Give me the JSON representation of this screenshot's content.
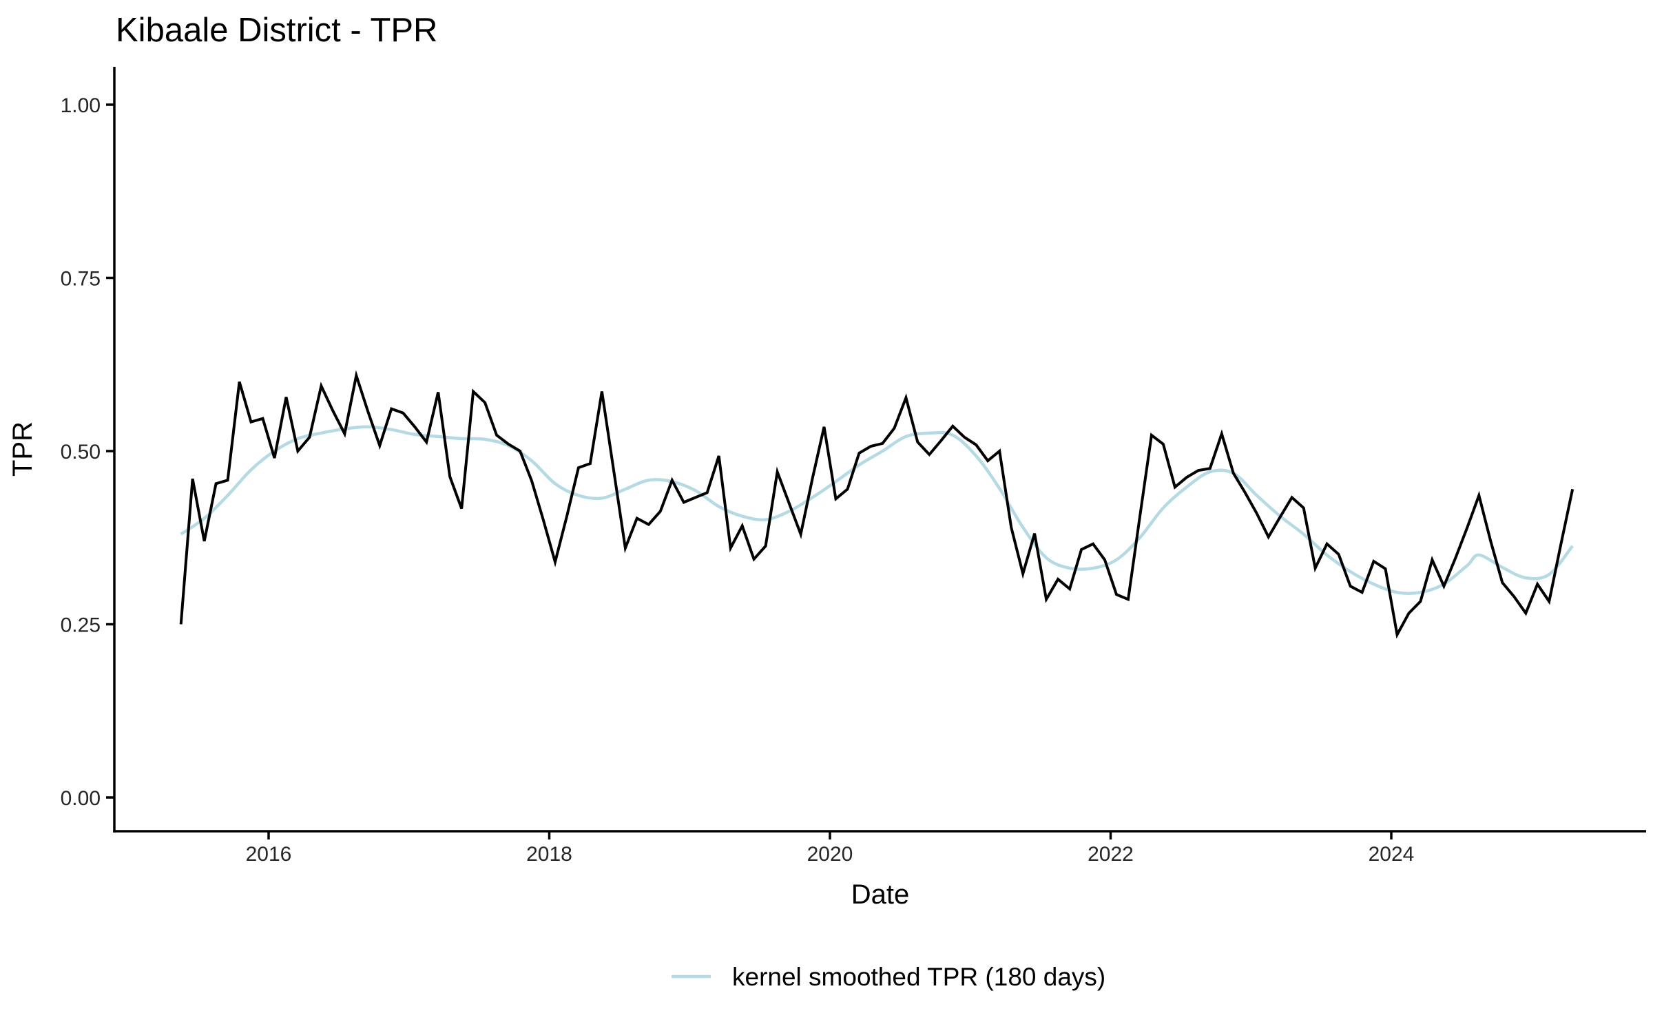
{
  "title": "Kibaale District - TPR",
  "axes": {
    "x_label": "Date",
    "y_label": "TPR",
    "x_tick_labels": [
      "2016",
      "2018",
      "2020",
      "2022",
      "2024"
    ],
    "x_tick_years": [
      2016,
      2018,
      2020,
      2022,
      2024
    ],
    "y_tick_labels": [
      "0.00",
      "0.25",
      "0.50",
      "0.75",
      "1.00"
    ],
    "y_tick_values": [
      0.0,
      0.25,
      0.5,
      0.75,
      1.0
    ]
  },
  "legend": {
    "label": "kernel smoothed TPR (180 days)",
    "swatch_color": "#B6DAE4"
  },
  "colors": {
    "raw_line": "#000000",
    "smoothed_line": "#B6DAE4",
    "axis": "#000000",
    "tick_text": "#262626"
  },
  "chart_data": {
    "type": "line",
    "title": "Kibaale District - TPR",
    "xlabel": "Date",
    "ylabel": "TPR",
    "legend_label": "kernel smoothed TPR (180 days)",
    "ylim": [
      0.0,
      1.0
    ],
    "x_ticks": [
      2016,
      2018,
      2020,
      2022,
      2024
    ],
    "y_ticks": [
      0.0,
      0.25,
      0.5,
      0.75,
      1.0
    ],
    "grid": "off",
    "legend_position": "bottom-center",
    "series": [
      {
        "name": "monthly TPR",
        "color": "#000000",
        "style": "solid",
        "start": "2015-05",
        "frequency": "monthly",
        "monthly_values": [
          0.25,
          0.46,
          0.37,
          0.453,
          0.458,
          0.6,
          0.542,
          0.547,
          0.49,
          0.578,
          0.5,
          0.52,
          0.594,
          0.558,
          0.525,
          0.609,
          0.557,
          0.508,
          0.561,
          0.555,
          0.535,
          0.513,
          0.585,
          0.463,
          0.417,
          0.586,
          0.57,
          0.523,
          0.51,
          0.5,
          0.457,
          0.4,
          0.34,
          0.406,
          0.476,
          0.482,
          0.586,
          0.473,
          0.36,
          0.403,
          0.394,
          0.413,
          0.458,
          0.426,
          0.433,
          0.44,
          0.493,
          0.36,
          0.392,
          0.344,
          0.363,
          0.47,
          0.425,
          0.38,
          0.46,
          0.535,
          0.431,
          0.445,
          0.497,
          0.507,
          0.511,
          0.533,
          0.577,
          0.513,
          0.495,
          0.515,
          0.536,
          0.52,
          0.509,
          0.486,
          0.5,
          0.39,
          0.323,
          0.381,
          0.286,
          0.315,
          0.301,
          0.358,
          0.366,
          0.343,
          0.293,
          0.286,
          0.405,
          0.523,
          0.51,
          0.448,
          0.462,
          0.472,
          0.475,
          0.525,
          0.468,
          0.44,
          0.41,
          0.376,
          0.405,
          0.433,
          0.418,
          0.331,
          0.366,
          0.351,
          0.305,
          0.296,
          0.341,
          0.33,
          0.235,
          0.266,
          0.283,
          0.343,
          0.305,
          0.346,
          0.39,
          0.436,
          0.37,
          0.31,
          0.29,
          0.266,
          0.308,
          0.283,
          0.365,
          0.445
        ]
      },
      {
        "name": "kernel smoothed TPR (180 days)",
        "color": "#B6DAE4",
        "style": "solid-smooth",
        "points": [
          {
            "date": "2015-05",
            "value": 0.38
          },
          {
            "date": "2015-07",
            "value": 0.403
          },
          {
            "date": "2015-09",
            "value": 0.436
          },
          {
            "date": "2015-11",
            "value": 0.473
          },
          {
            "date": "2016-01",
            "value": 0.5
          },
          {
            "date": "2016-03",
            "value": 0.518
          },
          {
            "date": "2016-05",
            "value": 0.526
          },
          {
            "date": "2016-07",
            "value": 0.532
          },
          {
            "date": "2016-09",
            "value": 0.535
          },
          {
            "date": "2016-11",
            "value": 0.531
          },
          {
            "date": "2017-01",
            "value": 0.524
          },
          {
            "date": "2017-03",
            "value": 0.521
          },
          {
            "date": "2017-05",
            "value": 0.518
          },
          {
            "date": "2017-07",
            "value": 0.517
          },
          {
            "date": "2017-09",
            "value": 0.508
          },
          {
            "date": "2017-11",
            "value": 0.486
          },
          {
            "date": "2018-01",
            "value": 0.453
          },
          {
            "date": "2018-03",
            "value": 0.436
          },
          {
            "date": "2018-05",
            "value": 0.432
          },
          {
            "date": "2018-07",
            "value": 0.445
          },
          {
            "date": "2018-09",
            "value": 0.458
          },
          {
            "date": "2018-11",
            "value": 0.456
          },
          {
            "date": "2019-01",
            "value": 0.443
          },
          {
            "date": "2019-03",
            "value": 0.42
          },
          {
            "date": "2019-05",
            "value": 0.406
          },
          {
            "date": "2019-07",
            "value": 0.401
          },
          {
            "date": "2019-09",
            "value": 0.413
          },
          {
            "date": "2019-11",
            "value": 0.433
          },
          {
            "date": "2020-01",
            "value": 0.456
          },
          {
            "date": "2020-03",
            "value": 0.48
          },
          {
            "date": "2020-05",
            "value": 0.5
          },
          {
            "date": "2020-07",
            "value": 0.521
          },
          {
            "date": "2020-09",
            "value": 0.526
          },
          {
            "date": "2020-11",
            "value": 0.523
          },
          {
            "date": "2021-01",
            "value": 0.493
          },
          {
            "date": "2021-03",
            "value": 0.446
          },
          {
            "date": "2021-05",
            "value": 0.39
          },
          {
            "date": "2021-07",
            "value": 0.346
          },
          {
            "date": "2021-09",
            "value": 0.331
          },
          {
            "date": "2021-11",
            "value": 0.331
          },
          {
            "date": "2022-01",
            "value": 0.343
          },
          {
            "date": "2022-03",
            "value": 0.375
          },
          {
            "date": "2022-05",
            "value": 0.418
          },
          {
            "date": "2022-07",
            "value": 0.448
          },
          {
            "date": "2022-09",
            "value": 0.47
          },
          {
            "date": "2022-11",
            "value": 0.468
          },
          {
            "date": "2023-01",
            "value": 0.436
          },
          {
            "date": "2023-03",
            "value": 0.406
          },
          {
            "date": "2023-05",
            "value": 0.38
          },
          {
            "date": "2023-07",
            "value": 0.35
          },
          {
            "date": "2023-09",
            "value": 0.326
          },
          {
            "date": "2023-11",
            "value": 0.308
          },
          {
            "date": "2024-01",
            "value": 0.296
          },
          {
            "date": "2024-03",
            "value": 0.296
          },
          {
            "date": "2024-05",
            "value": 0.308
          },
          {
            "date": "2024-07",
            "value": 0.335
          },
          {
            "date": "2024-08",
            "value": 0.35
          },
          {
            "date": "2024-10",
            "value": 0.332
          },
          {
            "date": "2024-12",
            "value": 0.317
          },
          {
            "date": "2025-02",
            "value": 0.322
          },
          {
            "date": "2025-04",
            "value": 0.363
          }
        ]
      }
    ]
  }
}
